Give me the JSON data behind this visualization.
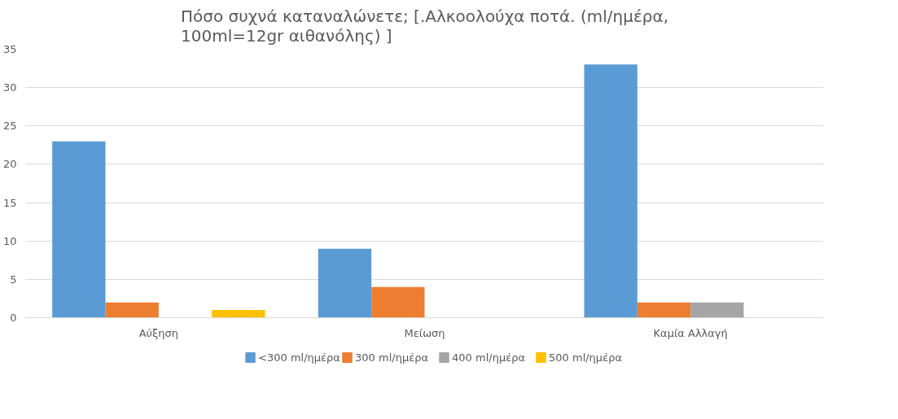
{
  "chart_data": {
    "type": "bar",
    "title": "Πόσο συχνά καταναλώνετε; [.Αλκοολούχα ποτά. (ml/ημέρα, 100ml=12gr αιθανόλης) ]",
    "categories": [
      "Αύξηση",
      "Μείωση",
      "Καμία Αλλαγή"
    ],
    "series": [
      {
        "name": "<300 ml/ημέρα",
        "color": "#5b9bd5",
        "values": [
          23,
          9,
          33
        ]
      },
      {
        "name": "300 ml/ημέρα",
        "color": "#ed7d31",
        "values": [
          2,
          4,
          2
        ]
      },
      {
        "name": "400 ml/ημέρα",
        "color": "#a5a5a5",
        "values": [
          0,
          0,
          2
        ]
      },
      {
        "name": "500 ml/ημέρα",
        "color": "#ffc000",
        "values": [
          1,
          0,
          0
        ]
      }
    ],
    "ylim": [
      0,
      35
    ],
    "yticks": [
      0,
      5,
      10,
      15,
      20,
      25,
      30,
      35
    ],
    "grid": "y",
    "legend": "bottom"
  }
}
